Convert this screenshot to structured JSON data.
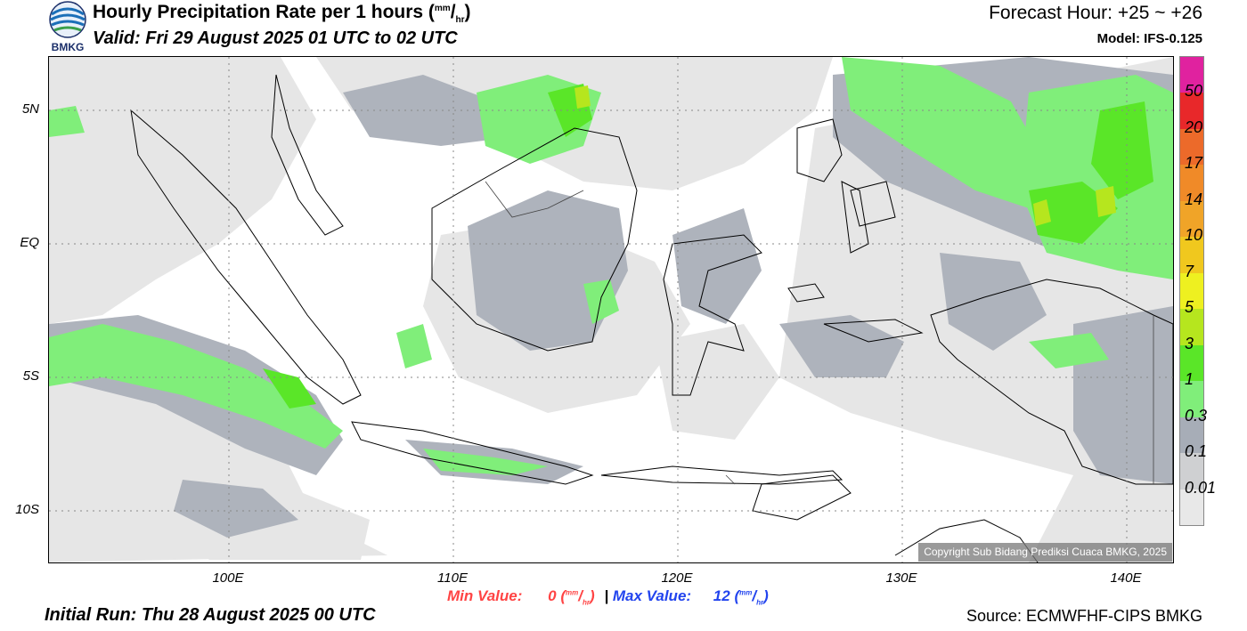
{
  "header": {
    "title_main": "Hourly Precipitation Rate per 1 hours (",
    "title_unit_num": "mm",
    "title_unit_den": "hr",
    "title_close": ")",
    "valid": "Valid: Fri 29 August 2025 01 UTC to 02 UTC",
    "forecast_hour": "Forecast Hour: +25 ~ +26",
    "model": "Model: IFS-0.125",
    "logo_text": "BMKG"
  },
  "map": {
    "lat_labels": [
      "5N",
      "EQ",
      "5S",
      "10S"
    ],
    "lon_labels": [
      "100E",
      "110E",
      "120E",
      "130E",
      "140E"
    ],
    "lon_range": [
      92,
      142
    ],
    "lat_range": [
      -12,
      7
    ],
    "copyright": "Copyright Sub Bidang Prediksi Cuaca BMKG, 2025"
  },
  "colorbar": {
    "labels": [
      "50",
      "20",
      "17",
      "14",
      "10",
      "7",
      "5",
      "3",
      "1",
      "0.3",
      "0.1",
      "0.01"
    ],
    "colors": [
      "#e0229f",
      "#e8282a",
      "#ec6a2a",
      "#f08a28",
      "#f0a428",
      "#f0c81e",
      "#eef020",
      "#b6e61e",
      "#5ae628",
      "#80ee7a",
      "#a7adb7",
      "#cfd0d2",
      "#e8e8e8"
    ]
  },
  "footer": {
    "min_label": "Min Value:",
    "min_value": "0",
    "max_label": "Max Value:",
    "max_value": "12",
    "unit_num": "mm",
    "unit_den": "hr",
    "separator": "|",
    "initial_run": "Initial Run: Thu 28 August 2025 00 UTC",
    "source": "Source: ECMWFHF-CIPS BMKG"
  }
}
